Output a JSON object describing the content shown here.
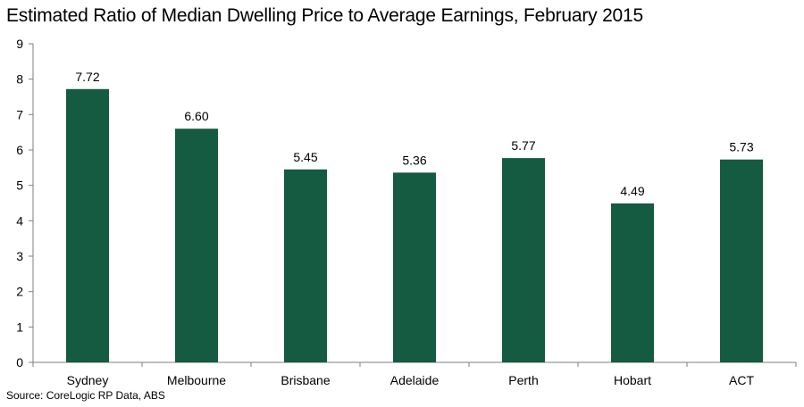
{
  "chart_data": {
    "type": "bar",
    "title": "Estimated Ratio of Median Dwelling Price to Average Earnings, February 2015",
    "categories": [
      "Sydney",
      "Melbourne",
      "Brisbane",
      "Adelaide",
      "Perth",
      "Hobart",
      "ACT"
    ],
    "values": [
      7.72,
      6.6,
      5.45,
      5.36,
      5.77,
      4.49,
      5.73
    ],
    "value_labels": [
      "7.72",
      "6.60",
      "5.45",
      "5.36",
      "5.77",
      "4.49",
      "5.73"
    ],
    "xlabel": "",
    "ylabel": "",
    "ylim": [
      0,
      9
    ],
    "yticks": [
      "0",
      "1",
      "2",
      "3",
      "4",
      "5",
      "6",
      "7",
      "8",
      "9"
    ],
    "grid": false,
    "legend": "none",
    "bar_color": "#145b41",
    "source": "Source: CoreLogic RP Data, ABS"
  }
}
